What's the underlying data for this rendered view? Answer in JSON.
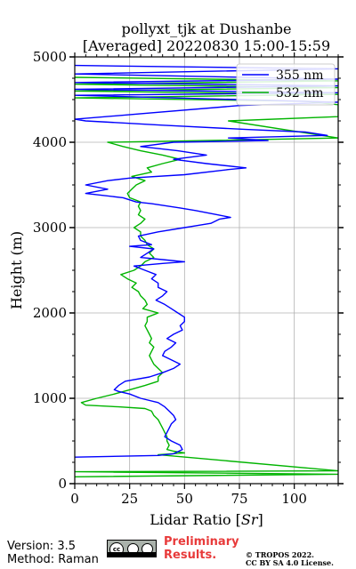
{
  "chart_data": {
    "type": "line",
    "title_line1": "pollyxt_tjk at Dushanbe",
    "title_line2": "[Averaged] 20220830 15:00-15:59",
    "xlabel": "Lidar Ratio [$Sr$]",
    "xlabel_text": "Lidar Ratio [",
    "xlabel_unit": "Sr",
    "xlabel_close": "]",
    "ylabel": "Height (m)",
    "xlim": [
      0,
      120
    ],
    "ylim": [
      0,
      5000
    ],
    "xticks": [
      0,
      25,
      50,
      75,
      100
    ],
    "yticks": [
      0,
      1000,
      2000,
      3000,
      4000,
      5000
    ],
    "grid": true,
    "legend_position": "top-right",
    "series": [
      {
        "name": "355 nm",
        "color": "#0000ff",
        "points": [
          [
            0,
            310
          ],
          [
            38,
            330
          ],
          [
            45,
            350
          ],
          [
            49,
            400
          ],
          [
            48,
            450
          ],
          [
            44,
            500
          ],
          [
            41,
            550
          ],
          [
            42,
            600
          ],
          [
            43,
            650
          ],
          [
            44,
            700
          ],
          [
            46,
            750
          ],
          [
            45,
            800
          ],
          [
            43,
            850
          ],
          [
            41,
            900
          ],
          [
            38,
            950
          ],
          [
            30,
            1000
          ],
          [
            25,
            1050
          ],
          [
            20,
            1080
          ],
          [
            18,
            1100
          ],
          [
            20,
            1150
          ],
          [
            23,
            1200
          ],
          [
            34,
            1250
          ],
          [
            40,
            1300
          ],
          [
            45,
            1350
          ],
          [
            48,
            1400
          ],
          [
            44,
            1450
          ],
          [
            40,
            1500
          ],
          [
            41,
            1550
          ],
          [
            44,
            1600
          ],
          [
            46,
            1650
          ],
          [
            42,
            1700
          ],
          [
            45,
            1750
          ],
          [
            49,
            1800
          ],
          [
            48,
            1850
          ],
          [
            50,
            1900
          ],
          [
            50,
            1950
          ],
          [
            47,
            2000
          ],
          [
            44,
            2050
          ],
          [
            41,
            2100
          ],
          [
            37,
            2150
          ],
          [
            40,
            2200
          ],
          [
            42,
            2250
          ],
          [
            38,
            2300
          ],
          [
            38,
            2350
          ],
          [
            35,
            2400
          ],
          [
            37,
            2450
          ],
          [
            32,
            2500
          ],
          [
            27,
            2550
          ],
          [
            40,
            2580
          ],
          [
            50,
            2600
          ],
          [
            42,
            2620
          ],
          [
            30,
            2650
          ],
          [
            33,
            2700
          ],
          [
            36,
            2750
          ],
          [
            25,
            2780
          ],
          [
            35,
            2800
          ],
          [
            30,
            2850
          ],
          [
            29,
            2900
          ],
          [
            38,
            2950
          ],
          [
            50,
            3000
          ],
          [
            62,
            3050
          ],
          [
            66,
            3100
          ],
          [
            71,
            3120
          ],
          [
            65,
            3150
          ],
          [
            55,
            3200
          ],
          [
            48,
            3230
          ],
          [
            35,
            3280
          ],
          [
            28,
            3300
          ],
          [
            22,
            3350
          ],
          [
            5,
            3400
          ],
          [
            15,
            3450
          ],
          [
            5,
            3500
          ],
          [
            15,
            3550
          ],
          [
            25,
            3580
          ],
          [
            50,
            3620
          ],
          [
            70,
            3680
          ],
          [
            78,
            3700
          ],
          [
            60,
            3750
          ],
          [
            45,
            3800
          ],
          [
            60,
            3850
          ],
          [
            47,
            3900
          ],
          [
            30,
            3950
          ],
          [
            45,
            4000
          ],
          [
            88,
            4020
          ],
          [
            70,
            4050
          ],
          [
            115,
            4080
          ],
          [
            105,
            4120
          ],
          [
            78,
            4150
          ],
          [
            40,
            4200
          ],
          [
            5,
            4250
          ],
          [
            0,
            4270
          ],
          [
            75,
            4430
          ],
          [
            120,
            4470
          ],
          [
            0,
            4550
          ],
          [
            120,
            4580
          ],
          [
            0,
            4620
          ],
          [
            120,
            4660
          ],
          [
            0,
            4700
          ],
          [
            120,
            4740
          ],
          [
            0,
            4800
          ],
          [
            120,
            4860
          ],
          [
            0,
            4900
          ]
        ]
      },
      {
        "name": "532 nm",
        "color": "#00b400",
        "points": [
          [
            0,
            80
          ],
          [
            120,
            110
          ],
          [
            0,
            140
          ],
          [
            120,
            150
          ],
          [
            38,
            340
          ],
          [
            50,
            360
          ],
          [
            45,
            380
          ],
          [
            42,
            400
          ],
          [
            43,
            450
          ],
          [
            42,
            500
          ],
          [
            42,
            550
          ],
          [
            41,
            600
          ],
          [
            40,
            650
          ],
          [
            39,
            700
          ],
          [
            38,
            750
          ],
          [
            36,
            800
          ],
          [
            35,
            850
          ],
          [
            32,
            880
          ],
          [
            20,
            900
          ],
          [
            5,
            920
          ],
          [
            3,
            950
          ],
          [
            10,
            1000
          ],
          [
            18,
            1050
          ],
          [
            25,
            1100
          ],
          [
            32,
            1150
          ],
          [
            38,
            1200
          ],
          [
            38,
            1250
          ],
          [
            40,
            1300
          ],
          [
            38,
            1350
          ],
          [
            36,
            1400
          ],
          [
            35,
            1450
          ],
          [
            34,
            1500
          ],
          [
            35,
            1550
          ],
          [
            36,
            1600
          ],
          [
            34,
            1650
          ],
          [
            35,
            1700
          ],
          [
            34,
            1750
          ],
          [
            33,
            1800
          ],
          [
            32,
            1850
          ],
          [
            33,
            1900
          ],
          [
            33,
            1950
          ],
          [
            38,
            2000
          ],
          [
            31,
            2050
          ],
          [
            33,
            2100
          ],
          [
            32,
            2150
          ],
          [
            30,
            2200
          ],
          [
            29,
            2250
          ],
          [
            26,
            2300
          ],
          [
            28,
            2350
          ],
          [
            24,
            2400
          ],
          [
            21,
            2450
          ],
          [
            27,
            2500
          ],
          [
            30,
            2550
          ],
          [
            32,
            2600
          ],
          [
            36,
            2650
          ],
          [
            34,
            2700
          ],
          [
            36,
            2750
          ],
          [
            33,
            2800
          ],
          [
            32,
            2850
          ],
          [
            30,
            2900
          ],
          [
            30,
            2950
          ],
          [
            27,
            3000
          ],
          [
            30,
            3050
          ],
          [
            32,
            3100
          ],
          [
            29,
            3150
          ],
          [
            30,
            3200
          ],
          [
            29,
            3250
          ],
          [
            30,
            3300
          ],
          [
            25,
            3350
          ],
          [
            24,
            3400
          ],
          [
            26,
            3450
          ],
          [
            28,
            3500
          ],
          [
            32,
            3550
          ],
          [
            26,
            3600
          ],
          [
            35,
            3650
          ],
          [
            33,
            3700
          ],
          [
            40,
            3750
          ],
          [
            48,
            3800
          ],
          [
            40,
            3850
          ],
          [
            30,
            3900
          ],
          [
            22,
            3950
          ],
          [
            15,
            4000
          ],
          [
            60,
            4020
          ],
          [
            120,
            4050
          ],
          [
            70,
            4250
          ],
          [
            120,
            4300
          ],
          [
            120,
            4440
          ],
          [
            105,
            4480
          ],
          [
            0,
            4520
          ],
          [
            120,
            4560
          ],
          [
            0,
            4600
          ],
          [
            120,
            4640
          ],
          [
            0,
            4680
          ],
          [
            120,
            4720
          ],
          [
            0,
            4760
          ]
        ]
      }
    ]
  },
  "footer": {
    "version": "Version: 3.5",
    "method": "Method: Raman",
    "preliminary_line1": "Preliminary",
    "preliminary_line2": "Results.",
    "copyright_line1": "© TROPOS 2022.",
    "copyright_line2": "CC BY SA 4.0 License.",
    "license_icon": "cc-by-sa-icon",
    "preliminary_color": "#e83a3a"
  }
}
